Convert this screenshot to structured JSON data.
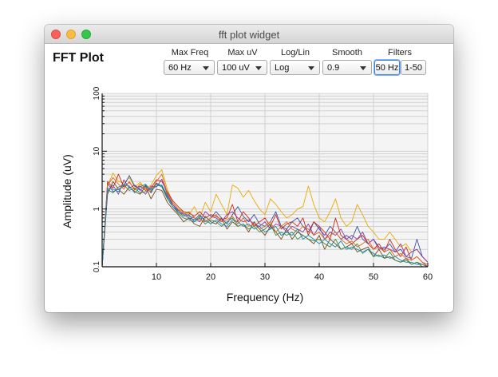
{
  "window": {
    "title": "fft plot widget"
  },
  "header": {
    "title": "FFT Plot"
  },
  "controls": {
    "max_freq": {
      "label": "Max Freq",
      "value": "60 Hz"
    },
    "max_uv": {
      "label": "Max uV",
      "value": "100 uV"
    },
    "log_lin": {
      "label": "Log/Lin",
      "value": "Log"
    },
    "smooth": {
      "label": "Smooth",
      "value": "0.9"
    },
    "filters": {
      "label": "Filters",
      "buttons": [
        "50 Hz",
        "1-50"
      ],
      "active": "50 Hz"
    }
  },
  "colors": {
    "plot_bg": "#f4f4f4",
    "grid": "#d0d0d0",
    "series": [
      "#e8a900",
      "#3a52a8",
      "#cc2a1a",
      "#7a4a22",
      "#3a8a4a",
      "#8a3aa0",
      "#dd6a1a",
      "#1a8aaa",
      "#333333",
      "#cc4488"
    ]
  },
  "chart_data": {
    "type": "line",
    "xlabel": "Frequency (Hz)",
    "ylabel": "Amplitude (uV)",
    "xlim": [
      0,
      60
    ],
    "ylim": [
      0.1,
      100
    ],
    "y_scale": "log",
    "x_ticks": [
      "10",
      "20",
      "30",
      "40",
      "50",
      "60"
    ],
    "y_ticks": [
      "0.1",
      "1",
      "10",
      "100"
    ],
    "grid": true,
    "x": [
      0,
      1,
      2,
      3,
      4,
      5,
      6,
      7,
      8,
      9,
      10,
      11,
      12,
      13,
      14,
      15,
      16,
      17,
      18,
      19,
      20,
      21,
      22,
      23,
      24,
      25,
      26,
      27,
      28,
      29,
      30,
      31,
      32,
      33,
      34,
      35,
      36,
      37,
      38,
      39,
      40,
      41,
      42,
      43,
      44,
      45,
      46,
      47,
      48,
      49,
      50,
      51,
      52,
      53,
      54,
      55,
      56,
      57,
      58,
      59,
      60
    ],
    "series": [
      {
        "values": [
          0.1,
          2.5,
          4.2,
          3,
          2.8,
          3.5,
          2.4,
          2.9,
          2.2,
          2.6,
          3.8,
          4.8,
          2.2,
          1.3,
          1,
          0.9,
          0.8,
          1.1,
          0.7,
          1.3,
          0.9,
          1.8,
          1.2,
          0.8,
          2.6,
          2.3,
          1.6,
          2.1,
          1.4,
          1,
          0.8,
          1.5,
          1.2,
          0.9,
          0.7,
          0.8,
          1,
          1.1,
          2.5,
          1.2,
          0.7,
          0.6,
          0.9,
          1.5,
          0.7,
          0.5,
          0.6,
          1.2,
          0.8,
          0.5,
          0.4,
          0.3,
          0.3,
          0.4,
          0.3,
          0.22,
          0.25,
          0.18,
          0.2,
          0.15,
          0.12
        ]
      },
      {
        "values": [
          0.1,
          2.8,
          2,
          2.2,
          2.5,
          3.8,
          2.5,
          2.1,
          2.6,
          1.9,
          2.8,
          2.5,
          1.6,
          1.2,
          0.9,
          0.8,
          0.7,
          0.65,
          0.8,
          0.6,
          0.7,
          0.9,
          0.7,
          0.55,
          0.8,
          1.1,
          0.75,
          0.6,
          0.8,
          0.55,
          0.5,
          0.6,
          0.9,
          0.5,
          0.45,
          0.6,
          0.7,
          0.5,
          0.4,
          0.6,
          0.45,
          0.35,
          0.5,
          0.4,
          0.3,
          0.35,
          0.3,
          0.5,
          0.3,
          0.25,
          0.3,
          0.22,
          0.2,
          0.25,
          0.18,
          0.2,
          0.15,
          0.14,
          0.3,
          0.15,
          0.12
        ]
      },
      {
        "values": [
          0.1,
          3,
          2.3,
          4,
          2.4,
          2.9,
          2.2,
          2.5,
          2.1,
          2.3,
          3.2,
          3,
          2,
          1.4,
          1.1,
          0.9,
          0.85,
          0.75,
          0.9,
          0.7,
          0.8,
          0.75,
          0.65,
          0.7,
          1.2,
          0.6,
          0.9,
          0.7,
          0.5,
          0.6,
          0.7,
          0.5,
          0.8,
          0.45,
          0.55,
          0.6,
          0.5,
          0.7,
          0.35,
          0.6,
          0.5,
          0.4,
          0.3,
          0.7,
          0.35,
          0.3,
          0.25,
          0.3,
          0.35,
          0.25,
          0.2,
          0.25,
          0.18,
          0.3,
          0.2,
          0.15,
          0.22,
          0.13,
          0.15,
          0.12,
          0.1
        ]
      },
      {
        "values": [
          0.1,
          1.8,
          3,
          2.2,
          1.8,
          2.4,
          2,
          1.8,
          2.5,
          1.5,
          2.2,
          2.1,
          1.3,
          1,
          0.8,
          0.6,
          0.7,
          0.55,
          0.5,
          0.75,
          0.6,
          0.55,
          0.7,
          0.45,
          0.6,
          0.5,
          0.55,
          0.4,
          0.6,
          0.45,
          0.35,
          0.5,
          0.4,
          0.3,
          0.45,
          0.3,
          0.4,
          0.35,
          0.3,
          0.25,
          0.35,
          0.2,
          0.3,
          0.25,
          0.2,
          0.22,
          0.25,
          0.18,
          0.2,
          0.22,
          0.15,
          0.2,
          0.14,
          0.15,
          0.13,
          0.12,
          0.14,
          0.11,
          0.12,
          0.11,
          0.1
        ]
      },
      {
        "values": [
          0.1,
          2.2,
          1.9,
          2.4,
          2.6,
          2.1,
          2.3,
          1.9,
          2,
          2.2,
          2.7,
          2.4,
          1.5,
          1.1,
          0.85,
          0.7,
          0.65,
          0.6,
          0.7,
          0.55,
          0.65,
          0.6,
          0.5,
          0.6,
          0.7,
          0.5,
          0.55,
          0.45,
          0.5,
          0.4,
          0.45,
          0.55,
          0.35,
          0.4,
          0.35,
          0.4,
          0.3,
          0.35,
          0.3,
          0.28,
          0.3,
          0.25,
          0.22,
          0.3,
          0.2,
          0.22,
          0.2,
          0.25,
          0.17,
          0.2,
          0.15,
          0.16,
          0.14,
          0.18,
          0.13,
          0.12,
          0.13,
          0.11,
          0.12,
          0.1,
          0.1
        ]
      },
      {
        "values": [
          0.1,
          2,
          2.6,
          1.8,
          3.2,
          2.3,
          2.6,
          2.2,
          1.8,
          2.5,
          2.4,
          3.3,
          1.8,
          1.2,
          0.95,
          0.85,
          0.75,
          0.7,
          0.6,
          0.9,
          0.75,
          0.7,
          0.6,
          0.8,
          0.9,
          0.7,
          0.6,
          0.65,
          0.55,
          0.5,
          0.6,
          0.45,
          0.55,
          0.5,
          0.4,
          0.5,
          0.45,
          0.4,
          0.55,
          0.35,
          0.5,
          0.3,
          0.4,
          0.35,
          0.45,
          0.3,
          0.35,
          0.3,
          0.4,
          0.25,
          0.3,
          0.2,
          0.22,
          0.2,
          0.18,
          0.25,
          0.15,
          0.18,
          0.2,
          0.15,
          0.12
        ]
      },
      {
        "values": [
          0.1,
          2.6,
          3.5,
          2.7,
          2.2,
          3,
          2.1,
          2.7,
          2.3,
          2,
          3,
          4,
          1.9,
          1.3,
          1,
          0.8,
          0.9,
          0.7,
          0.65,
          0.6,
          0.7,
          0.8,
          0.6,
          0.65,
          0.75,
          0.55,
          0.7,
          0.5,
          0.55,
          0.45,
          0.5,
          0.6,
          0.4,
          0.5,
          0.6,
          0.45,
          0.4,
          0.5,
          0.45,
          0.35,
          0.4,
          0.3,
          0.35,
          0.4,
          0.3,
          0.25,
          0.28,
          0.22,
          0.25,
          0.3,
          0.2,
          0.22,
          0.18,
          0.2,
          0.15,
          0.17,
          0.14,
          0.13,
          0.15,
          0.12,
          0.11
        ]
      },
      {
        "values": [
          0.1,
          2.3,
          2.2,
          2,
          2.7,
          2.5,
          1.9,
          2.4,
          2.7,
          2.1,
          2.5,
          2.6,
          1.7,
          1.1,
          0.9,
          0.75,
          0.8,
          0.6,
          0.75,
          0.65,
          0.55,
          0.65,
          0.55,
          0.5,
          0.65,
          0.6,
          0.5,
          0.55,
          0.45,
          0.5,
          0.4,
          0.45,
          0.5,
          0.35,
          0.4,
          0.35,
          0.45,
          0.3,
          0.35,
          0.3,
          0.25,
          0.3,
          0.25,
          0.22,
          0.28,
          0.2,
          0.22,
          0.2,
          0.18,
          0.2,
          0.17,
          0.15,
          0.16,
          0.14,
          0.15,
          0.13,
          0.12,
          0.12,
          0.11,
          0.11,
          0.1
        ]
      }
    ]
  }
}
